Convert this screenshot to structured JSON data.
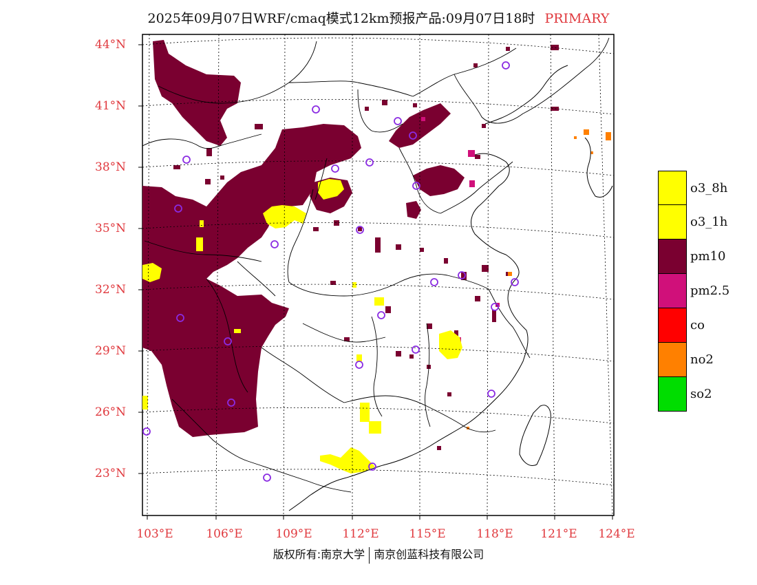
{
  "title": {
    "main": "2025年09月07日WRF/cmaq模式12km预报产品:09月07日18时",
    "tag": "PRIMARY"
  },
  "lat_labels": [
    "44°N",
    "41°N",
    "38°N",
    "35°N",
    "32°N",
    "29°N",
    "26°N",
    "23°N"
  ],
  "lon_labels": [
    "103°E",
    "106°E",
    "109°E",
    "112°E",
    "115°E",
    "118°E",
    "121°E",
    "124°E"
  ],
  "legend": {
    "items": [
      {
        "label": "o3_8h",
        "color": "#ffff00"
      },
      {
        "label": "o3_1h",
        "color": "#ffff00"
      },
      {
        "label": "pm10",
        "color": "#7a0030"
      },
      {
        "label": "pm2.5",
        "color": "#d0107a"
      },
      {
        "label": "co",
        "color": "#ff0000"
      },
      {
        "label": "no2",
        "color": "#ff8000"
      },
      {
        "label": "so2",
        "color": "#00dd00"
      }
    ]
  },
  "footer": {
    "left": "版权所有:南京大学",
    "right": "南京创蓝科技有限公司"
  },
  "colors": {
    "pm10": "#7a0030",
    "pm25": "#d0107a",
    "o3": "#ffff00",
    "no2": "#ff8000",
    "station": "#8a2be2",
    "axis_label": "#e0393e"
  }
}
